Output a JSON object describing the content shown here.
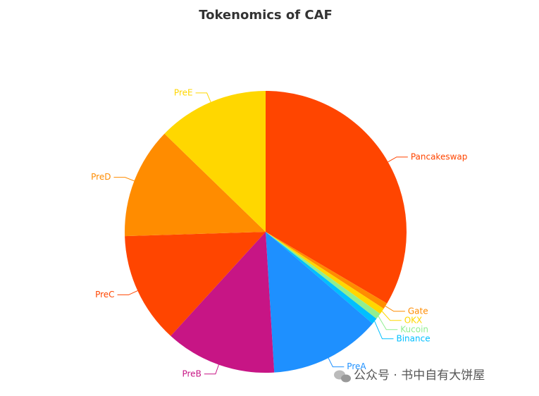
{
  "chart_data": {
    "type": "pie",
    "title": "Tokenomics of CAF",
    "categories": [
      "Pancakeswap",
      "Gate",
      "OKX",
      "Kucoin",
      "Binance",
      "PreA",
      "PreB",
      "PreC",
      "PreD",
      "PreE"
    ],
    "values": [
      33.5,
      0.7,
      0.7,
      0.7,
      0.7,
      12.75,
      12.75,
      12.75,
      12.75,
      12.75
    ],
    "colors": [
      "#ff4500",
      "#ff8c00",
      "#ffd700",
      "#90ee90",
      "#00bfff",
      "#1e90ff",
      "#c71585",
      "#ff4500",
      "#ff8c00",
      "#ffd700"
    ]
  },
  "watermark": "公众号 · 书中自有大饼屋"
}
